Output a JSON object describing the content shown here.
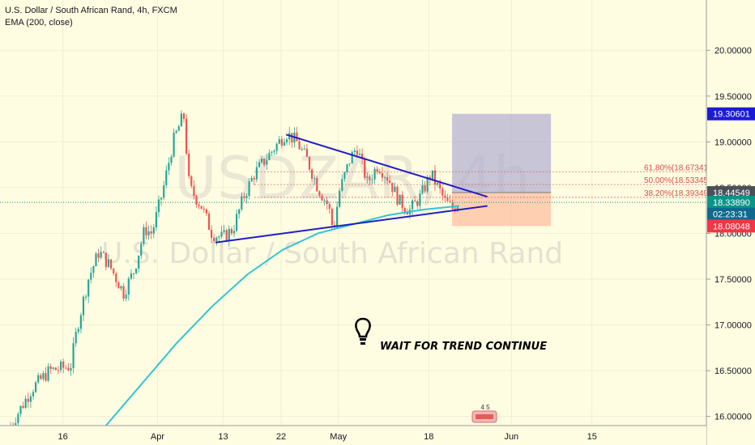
{
  "header": {
    "symbol_title": "U.S. Dollar / South African Rand, 4h, FXCM",
    "indicator": "EMA (200, close)"
  },
  "watermark": {
    "ticker": "USDZAR, 4h",
    "name": "U.S. Dollar / South African Rand"
  },
  "annotation": {
    "icon": "lightbulb-icon",
    "text": "WAIT FOR TREND CONTINUE"
  },
  "ideas_badge": "4 5",
  "colors": {
    "background": "#fffde1",
    "up_candle": "#26a69a",
    "down_candle": "#ef5350",
    "ema": "#2ec4d6",
    "trendline": "#1f1fc8",
    "target_zone": "#b4b1d1",
    "stop_zone": "#ffc3a6",
    "current_price": "#0d9488",
    "target_tag": "#1b1bd6",
    "stop_tag": "#f23645",
    "entry_tag": "#4a4f58",
    "timer_tag": "#0d6a8e"
  },
  "chart_data": {
    "type": "candlestick",
    "ylim": [
      15.9,
      20.55
    ],
    "y_ticks": [
      "16.00000",
      "16.50000",
      "17.00000",
      "17.50000",
      "18.00000",
      "18.50000",
      "19.00000",
      "19.50000",
      "20.00000"
    ],
    "y_tick_values": [
      16.0,
      16.5,
      17.0,
      17.5,
      18.0,
      18.5,
      19.0,
      19.5,
      20.0
    ],
    "x_ticks": [
      "16",
      "Apr",
      "13",
      "22",
      "May",
      "18",
      "Jun",
      "15"
    ],
    "x_tick_positions": [
      0.089,
      0.223,
      0.316,
      0.398,
      0.479,
      0.607,
      0.724,
      0.838
    ],
    "price_path": [
      [
        0.015,
        15.9
      ],
      [
        0.045,
        16.3
      ],
      [
        0.07,
        16.5
      ],
      [
        0.1,
        16.55
      ],
      [
        0.11,
        17.0
      ],
      [
        0.125,
        17.5
      ],
      [
        0.14,
        17.8
      ],
      [
        0.155,
        17.65
      ],
      [
        0.175,
        17.35
      ],
      [
        0.19,
        17.6
      ],
      [
        0.205,
        18.05
      ],
      [
        0.215,
        18.0
      ],
      [
        0.23,
        18.45
      ],
      [
        0.245,
        19.0
      ],
      [
        0.26,
        19.3
      ],
      [
        0.268,
        18.5
      ],
      [
        0.285,
        18.3
      ],
      [
        0.3,
        18.0
      ],
      [
        0.315,
        17.95
      ],
      [
        0.33,
        18.05
      ],
      [
        0.345,
        18.4
      ],
      [
        0.36,
        18.65
      ],
      [
        0.375,
        18.8
      ],
      [
        0.39,
        18.95
      ],
      [
        0.405,
        19.1
      ],
      [
        0.42,
        19.0
      ],
      [
        0.435,
        18.8
      ],
      [
        0.45,
        18.5
      ],
      [
        0.465,
        18.3
      ],
      [
        0.472,
        18.02
      ],
      [
        0.48,
        18.45
      ],
      [
        0.495,
        18.8
      ],
      [
        0.505,
        18.95
      ],
      [
        0.52,
        18.55
      ],
      [
        0.535,
        18.75
      ],
      [
        0.55,
        18.6
      ],
      [
        0.565,
        18.35
      ],
      [
        0.58,
        18.25
      ],
      [
        0.595,
        18.4
      ],
      [
        0.61,
        18.65
      ],
      [
        0.62,
        18.5
      ],
      [
        0.63,
        18.35
      ],
      [
        0.64,
        18.27
      ],
      [
        0.65,
        18.34
      ]
    ],
    "ema_200": [
      [
        0.15,
        15.9
      ],
      [
        0.2,
        16.35
      ],
      [
        0.25,
        16.8
      ],
      [
        0.3,
        17.2
      ],
      [
        0.35,
        17.55
      ],
      [
        0.4,
        17.82
      ],
      [
        0.45,
        18.0
      ],
      [
        0.5,
        18.1
      ],
      [
        0.55,
        18.2
      ],
      [
        0.6,
        18.26
      ],
      [
        0.65,
        18.3
      ]
    ],
    "trendline_upper": [
      [
        0.405,
        19.08
      ],
      [
        0.69,
        18.4
      ]
    ],
    "trendline_lower": [
      [
        0.305,
        17.9
      ],
      [
        0.69,
        18.3
      ]
    ],
    "fibonacci": [
      {
        "label": "61.80%(18.67341",
        "value": 18.67341
      },
      {
        "label": "50.00%(18.53345",
        "value": 18.53345
      },
      {
        "label": "38.20%(18.39349",
        "value": 18.39349
      }
    ],
    "position": {
      "x_start": 0.64,
      "x_end": 0.78,
      "target": 19.30601,
      "entry": 18.44549,
      "stop": 18.08048
    },
    "price_tags": [
      {
        "label": "19.30601",
        "value": 19.30601,
        "color_key": "target_tag"
      },
      {
        "label": "18.44549",
        "value": 18.44549,
        "color_key": "entry_tag"
      },
      {
        "label": "18.33890",
        "value": 18.3389,
        "color_key": "current_price"
      },
      {
        "label": "02:23:31",
        "value": 18.21,
        "color_key": "timer_tag"
      },
      {
        "label": "18.08048",
        "value": 18.08048,
        "color_key": "stop_tag"
      }
    ],
    "current_price": 18.3389
  }
}
